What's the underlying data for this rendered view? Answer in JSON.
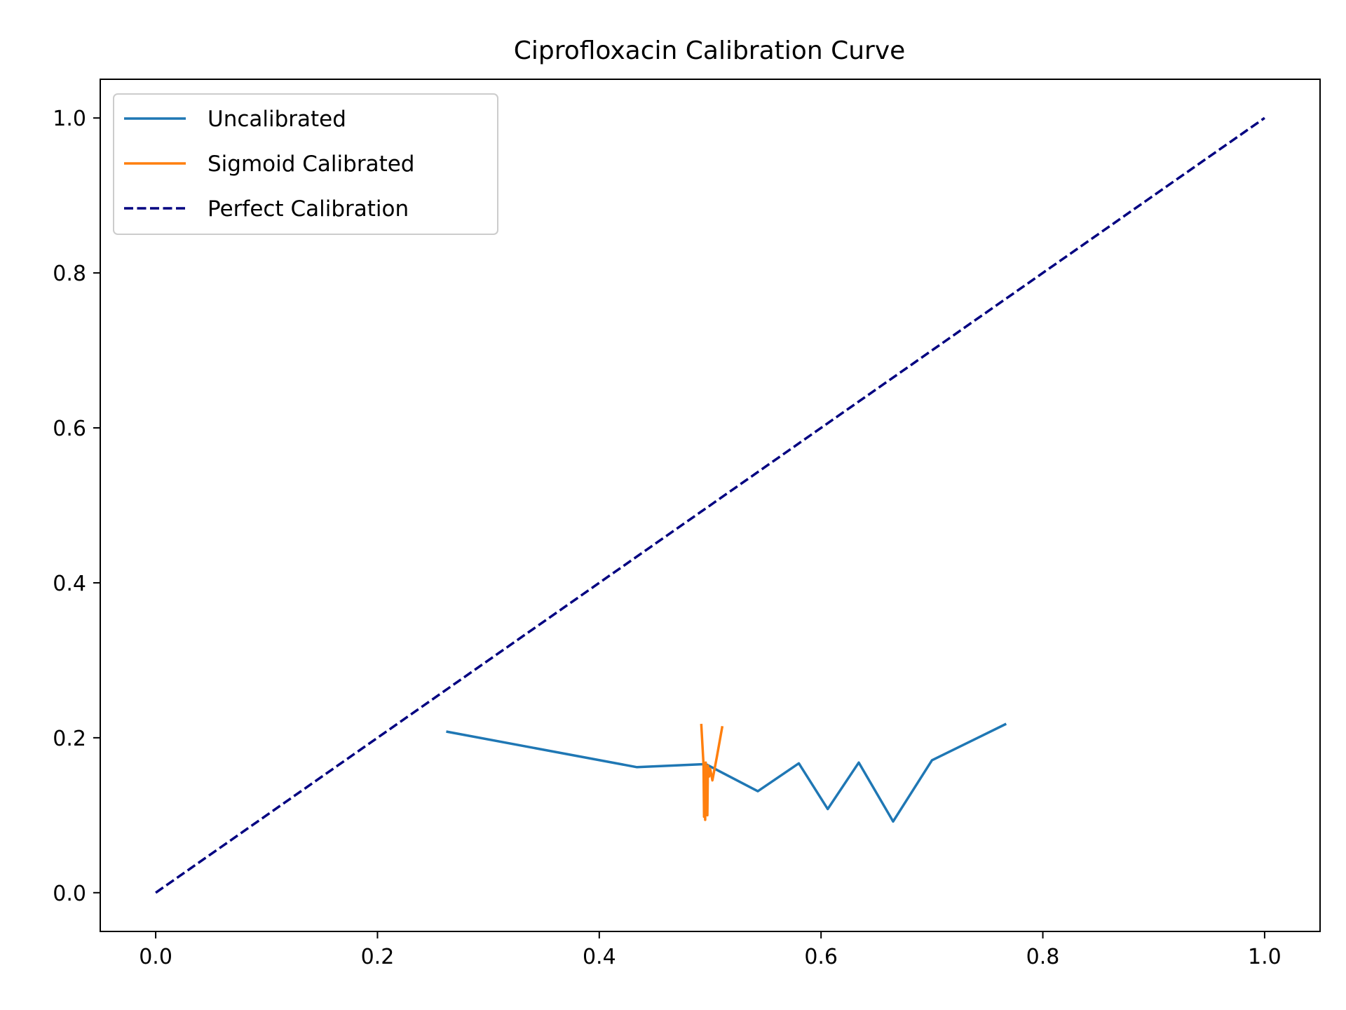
{
  "chart_data": {
    "type": "line",
    "title": "Ciprofloxacin Calibration Curve",
    "xlabel": "",
    "ylabel": "",
    "xlim": [
      -0.05,
      1.05
    ],
    "ylim": [
      -0.05,
      1.05
    ],
    "x_ticks": [
      "0.0",
      "0.2",
      "0.4",
      "0.6",
      "0.8",
      "1.0"
    ],
    "y_ticks": [
      "0.0",
      "0.2",
      "0.4",
      "0.6",
      "0.8",
      "1.0"
    ],
    "grid": false,
    "legend_position": "top-left",
    "series": [
      {
        "name": "Uncalibrated",
        "color": "#1f77b4",
        "style": "solid",
        "x": [
          0.262,
          0.434,
          0.496,
          0.543,
          0.58,
          0.606,
          0.634,
          0.665,
          0.7,
          0.767
        ],
        "y": [
          0.208,
          0.162,
          0.166,
          0.131,
          0.167,
          0.108,
          0.168,
          0.092,
          0.171,
          0.218
        ]
      },
      {
        "name": "Sigmoid Calibrated",
        "color": "#ff7f0e",
        "style": "solid",
        "x": [
          0.492,
          0.494,
          0.4945,
          0.495,
          0.4955,
          0.496,
          0.4965,
          0.497,
          0.4975,
          0.498,
          0.499,
          0.5,
          0.502,
          0.506,
          0.511
        ],
        "y": [
          0.218,
          0.166,
          0.098,
          0.145,
          0.094,
          0.168,
          0.104,
          0.152,
          0.1,
          0.164,
          0.15,
          0.16,
          0.145,
          0.175,
          0.215
        ]
      },
      {
        "name": "Perfect Calibration",
        "color": "#000080",
        "style": "dashed",
        "x": [
          0.0,
          1.0
        ],
        "y": [
          0.0,
          1.0
        ]
      }
    ]
  }
}
